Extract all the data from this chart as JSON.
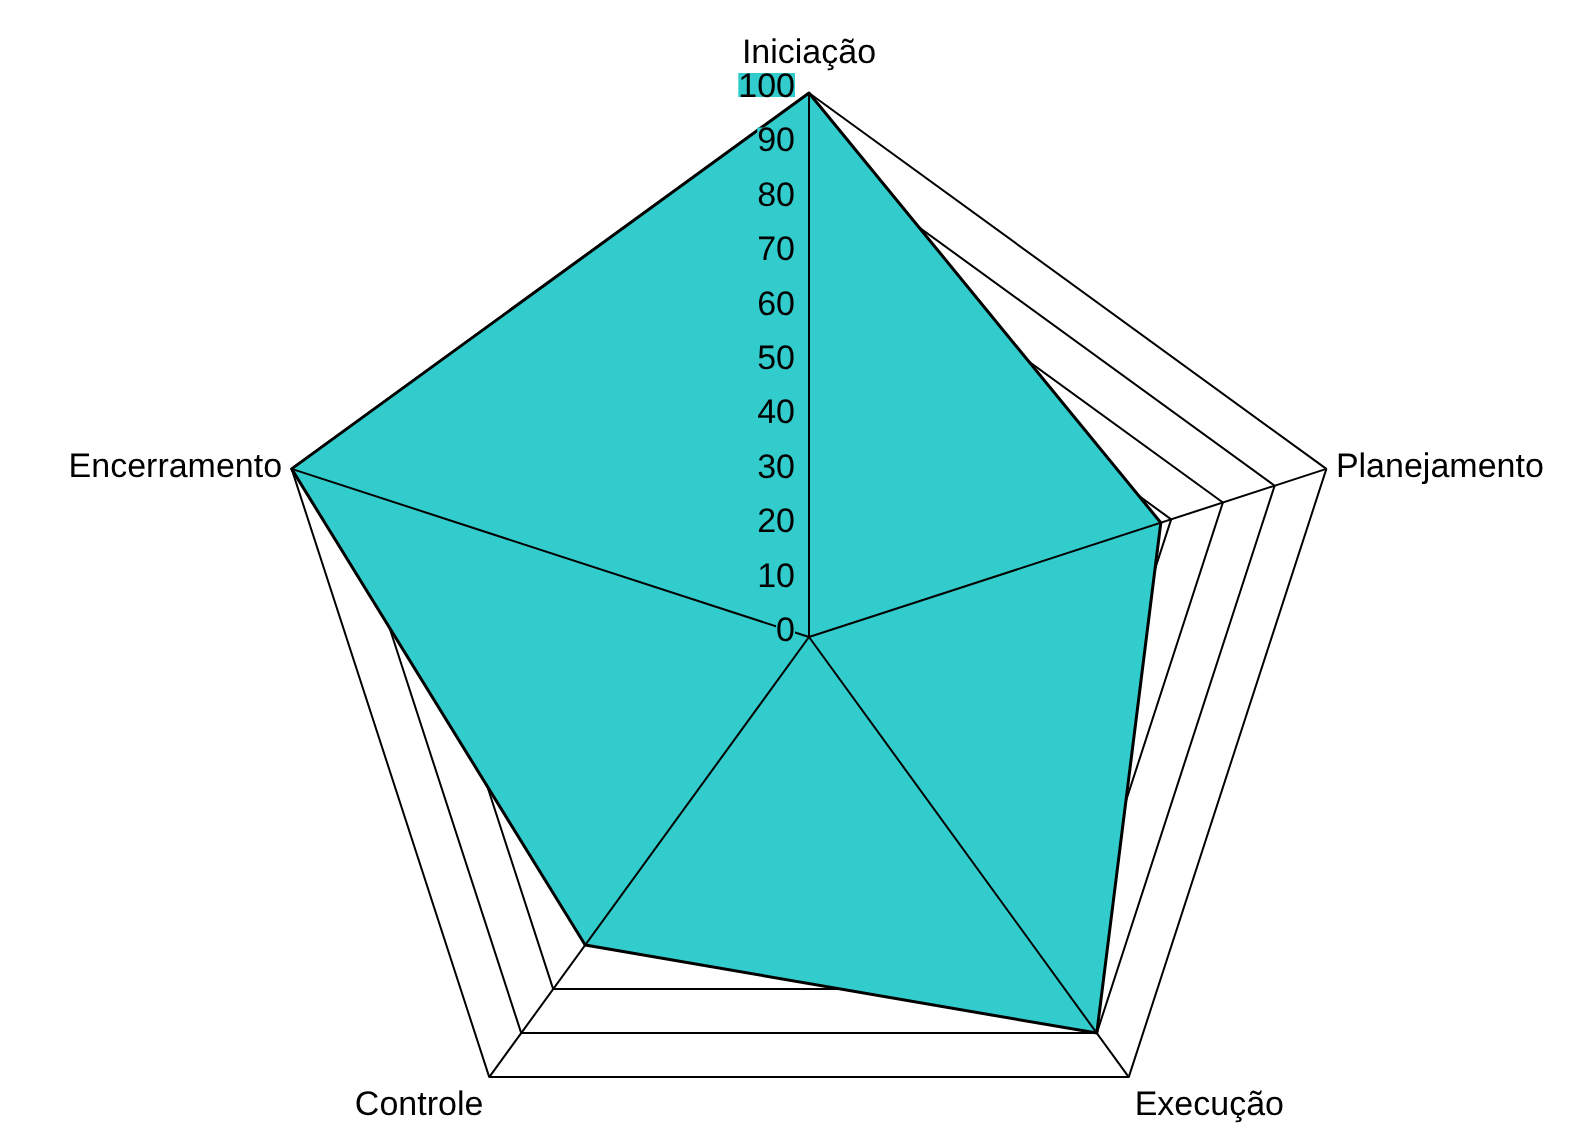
{
  "chart_data": {
    "type": "radar",
    "categories": [
      "Iniciação",
      "Planejamento",
      "Execução",
      "Controle",
      "Encerramento"
    ],
    "series": [
      {
        "color": "#33cccc",
        "values": [
          100,
          68,
          90,
          70,
          100
        ]
      }
    ],
    "ylim": [
      0,
      100
    ],
    "yticks": [
      0,
      10,
      20,
      30,
      40,
      50,
      60,
      70,
      80,
      90,
      100
    ],
    "grid": true
  }
}
